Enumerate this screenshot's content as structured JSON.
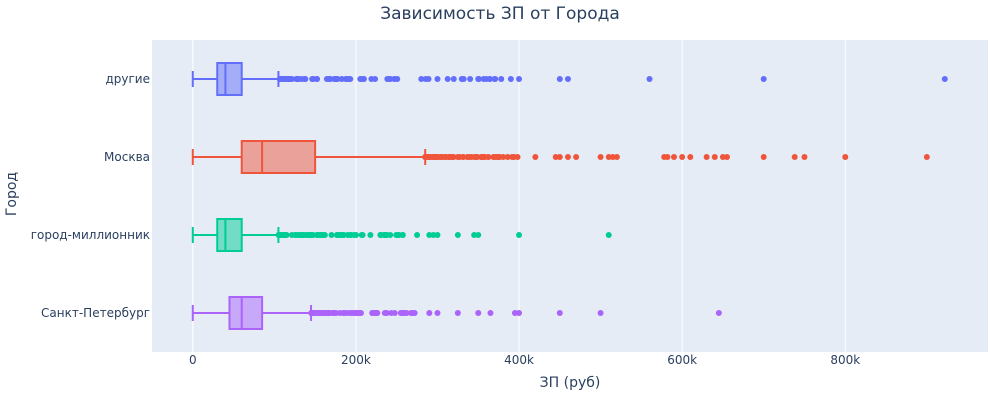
{
  "chart_data": {
    "type": "box",
    "title": "Зависимость ЗП от Города",
    "xlabel": "ЗП (руб)",
    "ylabel": "Город",
    "orientation": "horizontal",
    "xlim": [
      -50000,
      975000
    ],
    "x_ticks": [
      0,
      200000,
      400000,
      600000,
      800000
    ],
    "x_tick_labels": [
      "0",
      "200k",
      "400k",
      "600k",
      "800k"
    ],
    "grid": true,
    "legend": "none",
    "series": [
      {
        "category": "другие",
        "color": "#636efa",
        "min": 0,
        "q1": 30000,
        "median": 40000,
        "q3": 60000,
        "max": 105000,
        "outlier_range": [
          105000,
          385000
        ],
        "outliers": [
          390000,
          400000,
          300000,
          320000,
          340000,
          350000,
          360000,
          370000,
          450000,
          460000,
          560000,
          700000,
          922000
        ]
      },
      {
        "category": "Москва",
        "color": "#ef553b",
        "min": 0,
        "q1": 60000,
        "median": 85000,
        "q3": 150000,
        "max": 285000,
        "outlier_range": [
          285000,
          400000
        ],
        "outliers": [
          420000,
          445000,
          450000,
          460000,
          470000,
          500000,
          510000,
          515000,
          520000,
          578000,
          582000,
          590000,
          600000,
          610000,
          630000,
          640000,
          650000,
          655000,
          700000,
          738000,
          750000,
          800000,
          900000
        ]
      },
      {
        "category": "город-миллионник",
        "color": "#00cc96",
        "min": 0,
        "q1": 30000,
        "median": 40000,
        "q3": 60000,
        "max": 105000,
        "outlier_range": [
          105000,
          260000
        ],
        "outliers": [
          275000,
          290000,
          295000,
          300000,
          325000,
          345000,
          350000,
          400000,
          510000
        ]
      },
      {
        "category": "Санкт-Петербург",
        "color": "#ab63fa",
        "min": 0,
        "q1": 45000,
        "median": 60000,
        "q3": 85000,
        "max": 145000,
        "outlier_range": [
          145000,
          280000
        ],
        "outliers": [
          290000,
          300000,
          325000,
          350000,
          365000,
          395000,
          400000,
          450000,
          500000,
          645000
        ]
      }
    ]
  }
}
